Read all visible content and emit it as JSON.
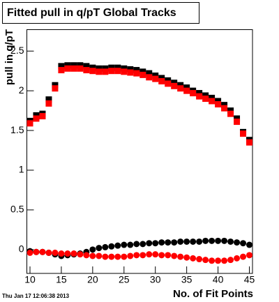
{
  "chart_data": {
    "type": "scatter",
    "title": "Fitted pull in q/pT  Global Tracks",
    "x_label": "No. of Fit Points",
    "y_label": "pull in q/pT",
    "annotation": "Thu Jan 17 12:06:38 2013",
    "x": [
      10,
      11,
      12,
      13,
      14,
      15,
      16,
      17,
      18,
      19,
      20,
      21,
      22,
      23,
      24,
      25,
      26,
      27,
      28,
      29,
      30,
      31,
      32,
      33,
      34,
      35,
      36,
      37,
      38,
      39,
      40,
      41,
      42,
      43,
      44,
      45
    ],
    "xlim": [
      9.5,
      45.5
    ],
    "xticks": [
      10,
      15,
      20,
      25,
      30,
      35,
      40,
      45
    ],
    "ylim": [
      -0.3,
      2.77
    ],
    "yticks": [
      0,
      0.5,
      1,
      1.5,
      2,
      2.5
    ],
    "series": [
      {
        "color": "#000000",
        "marker": "square",
        "values": [
          1.62,
          1.69,
          1.71,
          1.89,
          2.07,
          2.31,
          2.32,
          2.32,
          2.32,
          2.31,
          2.29,
          2.28,
          2.28,
          2.29,
          2.29,
          2.28,
          2.27,
          2.26,
          2.24,
          2.22,
          2.19,
          2.16,
          2.13,
          2.1,
          2.07,
          2.04,
          2.0,
          1.97,
          1.94,
          1.91,
          1.87,
          1.82,
          1.75,
          1.65,
          1.48,
          1.38
        ]
      },
      {
        "color": "#ff0000",
        "marker": "square",
        "values": [
          1.59,
          1.65,
          1.68,
          1.84,
          2.03,
          2.26,
          2.28,
          2.28,
          2.28,
          2.26,
          2.25,
          2.24,
          2.24,
          2.25,
          2.25,
          2.24,
          2.23,
          2.22,
          2.2,
          2.17,
          2.15,
          2.12,
          2.09,
          2.06,
          2.03,
          2.0,
          1.97,
          1.93,
          1.9,
          1.87,
          1.83,
          1.78,
          1.71,
          1.61,
          1.46,
          1.35
        ]
      },
      {
        "color": "#000000",
        "marker": "circle",
        "values": [
          -0.02,
          -0.03,
          -0.03,
          -0.04,
          -0.06,
          -0.08,
          -0.07,
          -0.06,
          -0.05,
          -0.03,
          0.0,
          0.02,
          0.03,
          0.04,
          0.05,
          0.06,
          0.06,
          0.07,
          0.07,
          0.08,
          0.08,
          0.09,
          0.09,
          0.09,
          0.1,
          0.1,
          0.1,
          0.1,
          0.11,
          0.11,
          0.11,
          0.11,
          0.1,
          0.09,
          0.08,
          0.06
        ]
      },
      {
        "color": "#ff0000",
        "marker": "circle",
        "values": [
          -0.04,
          -0.03,
          -0.03,
          -0.04,
          -0.04,
          -0.05,
          -0.05,
          -0.05,
          -0.06,
          -0.07,
          -0.08,
          -0.08,
          -0.09,
          -0.09,
          -0.09,
          -0.09,
          -0.08,
          -0.07,
          -0.07,
          -0.06,
          -0.06,
          -0.07,
          -0.07,
          -0.08,
          -0.09,
          -0.1,
          -0.11,
          -0.12,
          -0.13,
          -0.14,
          -0.14,
          -0.14,
          -0.13,
          -0.11,
          -0.09,
          -0.07
        ]
      }
    ]
  }
}
